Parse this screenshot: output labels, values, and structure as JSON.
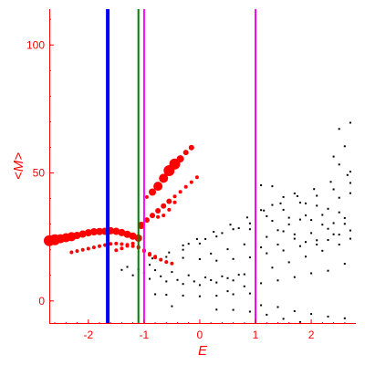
{
  "chart_data": {
    "type": "scatter",
    "title": "",
    "xlabel": "E",
    "ylabel": "<M>",
    "xlim": [
      -2.7,
      2.8
    ],
    "ylim": [
      -9,
      114
    ],
    "x_ticks": [
      -2,
      -1,
      0,
      1,
      2
    ],
    "x_tick_labels": [
      "-2",
      "-1",
      "0",
      "1",
      "2"
    ],
    "y_ticks": [
      0,
      50,
      100
    ],
    "y_tick_labels": [
      "0",
      "50",
      "100"
    ],
    "grid": false,
    "axis_color": "#ff0000",
    "vertical_lines": [
      {
        "x": -1.65,
        "color": "#0000ff",
        "style": "thick"
      },
      {
        "x": -1.1,
        "color": "#008000",
        "style": "thin"
      },
      {
        "x": -1.0,
        "color": "#ff00ff",
        "style": "thin"
      },
      {
        "x": 1.0,
        "color": "#ff00ff",
        "style": "thin"
      }
    ],
    "series": [
      {
        "color": "#000000",
        "marker": "dot",
        "points": [
          [
            -0.85,
            16.6
          ],
          [
            -0.55,
            18.9
          ],
          [
            -0.3,
            21.7
          ],
          [
            -0.05,
            24.2
          ],
          [
            0.25,
            27.0
          ],
          [
            0.55,
            29.8
          ],
          [
            0.85,
            32.6
          ],
          [
            1.15,
            35.3
          ],
          [
            1.45,
            38.1
          ],
          [
            1.75,
            40.9
          ],
          [
            2.05,
            43.7
          ],
          [
            2.35,
            46.5
          ],
          [
            2.65,
            49.2
          ],
          [
            -0.9,
            14.1
          ],
          [
            -0.6,
            17.2
          ],
          [
            -0.3,
            20.0
          ],
          [
            0.0,
            22.4
          ],
          [
            0.3,
            25.2
          ],
          [
            0.6,
            28.0
          ],
          [
            0.9,
            30.3
          ],
          [
            1.2,
            33.1
          ],
          [
            1.5,
            35.6
          ],
          [
            1.8,
            38.4
          ],
          [
            2.1,
            41.1
          ],
          [
            2.4,
            43.6
          ],
          [
            2.7,
            46.1
          ],
          [
            -1.3,
            13.3
          ],
          [
            -1.1,
            12.3
          ],
          [
            -0.8,
            12.0
          ],
          [
            -0.5,
            11.3
          ],
          [
            -0.2,
            10.0
          ],
          [
            0.1,
            9.2
          ],
          [
            0.4,
            9.6
          ],
          [
            0.7,
            10.2
          ],
          [
            1.0,
            11.7
          ],
          [
            1.3,
            13.0
          ],
          [
            1.6,
            15.1
          ],
          [
            1.9,
            17.3
          ],
          [
            2.2,
            19.6
          ],
          [
            2.5,
            22.0
          ],
          [
            -1.2,
            10.0
          ],
          [
            -0.9,
            8.6
          ],
          [
            -0.6,
            7.6
          ],
          [
            -0.3,
            6.6
          ],
          [
            0.0,
            6.2
          ],
          [
            0.3,
            7.2
          ],
          [
            0.6,
            8.0
          ],
          [
            -1.4,
            12.1
          ],
          [
            -1.0,
            11.0
          ],
          [
            -0.7,
            9.6
          ],
          [
            -0.4,
            8.2
          ],
          [
            -0.1,
            7.6
          ],
          [
            0.2,
            8.1
          ],
          [
            0.5,
            8.9
          ],
          [
            0.8,
            10.4
          ],
          [
            -0.8,
            2.6
          ],
          [
            -0.6,
            2.4
          ],
          [
            -0.3,
            2.1
          ],
          [
            0.0,
            1.8
          ],
          [
            0.3,
            2.0
          ],
          [
            0.6,
            2.6
          ],
          [
            0.9,
            2.9
          ],
          [
            -0.5,
            -2.1
          ],
          [
            0.3,
            -3.4
          ],
          [
            0.6,
            -3.5
          ],
          [
            0.9,
            -4.2
          ],
          [
            1.2,
            -5.4
          ],
          [
            1.5,
            -7.0
          ],
          [
            1.8,
            -8.3
          ],
          [
            -0.2,
            22.3
          ],
          [
            0.1,
            24.2
          ],
          [
            0.4,
            26.5
          ],
          [
            0.7,
            28.4
          ],
          [
            1.0,
            30.0
          ],
          [
            1.3,
            31.3
          ],
          [
            1.6,
            32.5
          ],
          [
            1.9,
            33.4
          ],
          [
            2.2,
            33.6
          ],
          [
            2.5,
            34.6
          ],
          [
            0.2,
            18.5
          ],
          [
            0.5,
            20.2
          ],
          [
            0.8,
            22.1
          ],
          [
            1.1,
            20.9
          ],
          [
            1.4,
            22.0
          ],
          [
            1.7,
            24.3
          ],
          [
            2.0,
            26.5
          ],
          [
            2.3,
            28.2
          ],
          [
            2.6,
            30.1
          ],
          [
            -0.3,
            16.8
          ],
          [
            0.0,
            16.3
          ],
          [
            0.3,
            15.7
          ],
          [
            0.6,
            16.4
          ],
          [
            0.9,
            17.0
          ],
          [
            1.2,
            18.6
          ],
          [
            1.5,
            19.7
          ],
          [
            1.8,
            21.4
          ],
          [
            2.1,
            23.7
          ],
          [
            2.4,
            26.0
          ],
          [
            2.7,
            27.5
          ],
          [
            1.1,
            45.2
          ],
          [
            1.3,
            44.8
          ],
          [
            1.5,
            40.6
          ],
          [
            1.7,
            42.0
          ],
          [
            1.9,
            38.1
          ],
          [
            2.1,
            37.2
          ],
          [
            2.3,
            36.0
          ],
          [
            2.5,
            40.3
          ],
          [
            2.7,
            42.1
          ],
          [
            1.2,
            25.0
          ],
          [
            1.4,
            27.6
          ],
          [
            1.6,
            29.9
          ],
          [
            1.8,
            31.8
          ],
          [
            2.0,
            31.6
          ],
          [
            2.2,
            29.8
          ],
          [
            2.4,
            30.4
          ],
          [
            2.6,
            32.4
          ],
          [
            0.9,
            28.0
          ],
          [
            1.0,
            33.4
          ],
          [
            1.1,
            35.5
          ],
          [
            1.3,
            37.5
          ],
          [
            1.5,
            27.2
          ],
          [
            1.7,
            26.0
          ],
          [
            1.9,
            23.0
          ],
          [
            2.1,
            22.0
          ],
          [
            2.3,
            23.8
          ],
          [
            2.5,
            25.9
          ],
          [
            2.7,
            24.3
          ],
          [
            1.1,
            -1.7
          ],
          [
            1.4,
            -2.4
          ],
          [
            1.7,
            -4.0
          ],
          [
            2.0,
            -5.1
          ],
          [
            2.3,
            -6.1
          ],
          [
            2.6,
            -6.8
          ],
          [
            0.5,
            3.8
          ],
          [
            0.8,
            5.7
          ],
          [
            1.1,
            6.9
          ],
          [
            1.4,
            8.0
          ],
          [
            1.7,
            9.3
          ],
          [
            2.0,
            10.8
          ],
          [
            2.3,
            11.8
          ],
          [
            2.6,
            14.5
          ],
          [
            2.5,
            67.2
          ],
          [
            2.7,
            69.6
          ],
          [
            2.6,
            60.4
          ],
          [
            2.4,
            56.4
          ],
          [
            2.5,
            53.3
          ],
          [
            2.7,
            50.5
          ]
        ]
      },
      {
        "color": "#ff0000",
        "marker": "circle",
        "points": [
          [
            -2.7,
            23.5,
            6
          ],
          [
            -2.6,
            23.9,
            6
          ],
          [
            -2.5,
            24.3,
            5
          ],
          [
            -2.4,
            24.7,
            5
          ],
          [
            -2.3,
            25.1,
            5
          ],
          [
            -2.2,
            25.6,
            4
          ],
          [
            -2.1,
            26.1,
            4
          ],
          [
            -2.0,
            26.6,
            4
          ],
          [
            -1.9,
            27.0,
            4
          ],
          [
            -1.8,
            27.1,
            4
          ],
          [
            -1.7,
            27.2,
            4
          ],
          [
            -1.6,
            27.4,
            4
          ],
          [
            -1.5,
            27.2,
            4
          ],
          [
            -1.4,
            26.7,
            4
          ],
          [
            -1.3,
            26.0,
            4
          ],
          [
            -1.2,
            25.3,
            4
          ],
          [
            -1.1,
            24.5,
            4
          ],
          [
            -2.3,
            19.0,
            2
          ],
          [
            -2.2,
            19.5,
            2
          ],
          [
            -2.1,
            20.0,
            2
          ],
          [
            -2.0,
            20.4,
            2
          ],
          [
            -1.9,
            20.9,
            2
          ],
          [
            -1.8,
            21.4,
            2
          ],
          [
            -1.7,
            21.8,
            2
          ],
          [
            -1.6,
            22.3,
            2
          ],
          [
            -1.5,
            22.4,
            2
          ],
          [
            -1.4,
            22.2,
            2
          ],
          [
            -1.3,
            21.9,
            2
          ],
          [
            -1.2,
            21.4,
            2
          ],
          [
            -1.1,
            20.8,
            2
          ],
          [
            -1.0,
            19.8,
            2
          ],
          [
            -0.9,
            18.4,
            2
          ],
          [
            -0.8,
            17.3,
            2
          ],
          [
            -0.7,
            16.1,
            2
          ],
          [
            -0.6,
            15.2,
            2
          ],
          [
            -0.5,
            14.6,
            2
          ],
          [
            -1.5,
            19.8,
            2
          ],
          [
            -1.4,
            20.5,
            2
          ],
          [
            -1.3,
            21.5,
            2
          ],
          [
            -1.2,
            22.4,
            2
          ],
          [
            -1.1,
            21.1,
            2
          ],
          [
            -1.0,
            19.5,
            2
          ],
          [
            -0.9,
            18.0,
            2
          ],
          [
            -0.8,
            17.0,
            2
          ],
          [
            -1.05,
            29.5,
            4
          ],
          [
            -0.95,
            31.6,
            3
          ],
          [
            -0.85,
            33.4,
            3
          ],
          [
            -0.75,
            35.2,
            3
          ],
          [
            -0.65,
            37.1,
            3
          ],
          [
            -0.55,
            38.9,
            3
          ],
          [
            -0.45,
            40.8,
            2
          ],
          [
            -0.35,
            42.6,
            2
          ],
          [
            -0.25,
            44.6,
            2
          ],
          [
            -0.15,
            46.4,
            2
          ],
          [
            -0.05,
            48.3,
            2
          ],
          [
            -0.95,
            40.6,
            2
          ],
          [
            -0.85,
            42.5,
            4
          ],
          [
            -0.75,
            44.8,
            5
          ],
          [
            -0.65,
            47.9,
            5
          ],
          [
            -0.55,
            50.9,
            6
          ],
          [
            -0.45,
            53.5,
            6
          ],
          [
            -0.35,
            55.5,
            4
          ],
          [
            -0.25,
            58.0,
            3
          ],
          [
            -0.15,
            59.9,
            3
          ],
          [
            -0.75,
            32.8,
            2
          ],
          [
            -0.65,
            33.4,
            2
          ],
          [
            -0.55,
            35.6,
            2
          ],
          [
            -0.45,
            38.5,
            2
          ]
        ]
      }
    ]
  }
}
